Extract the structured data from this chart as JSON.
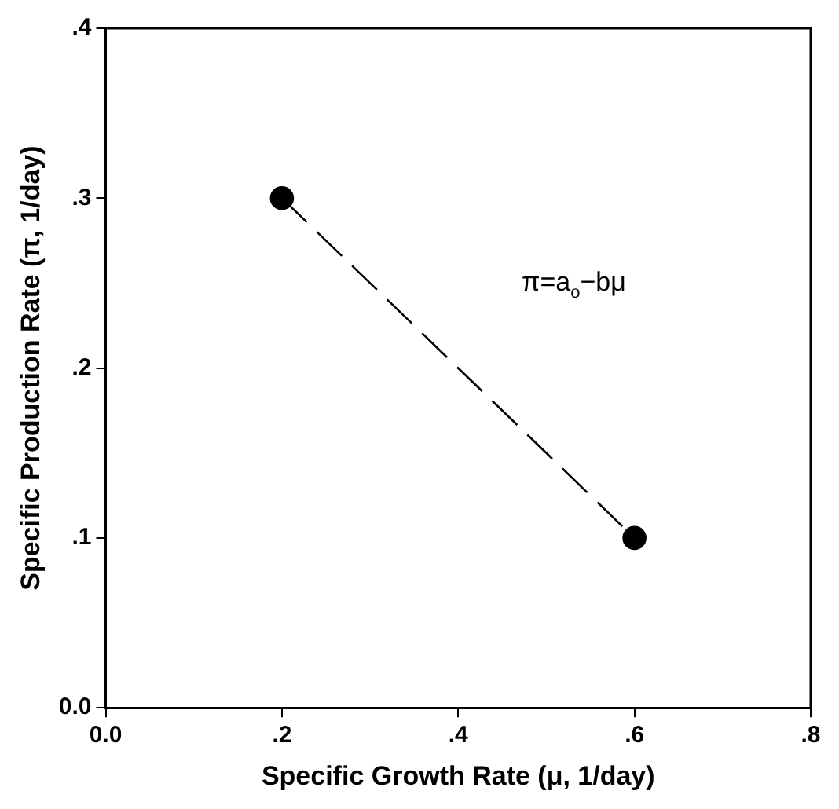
{
  "chart_data": {
    "type": "line",
    "xlabel": "Specific Growth Rate (μ, 1/day)",
    "ylabel": "Specific Production Rate (π, 1/day)",
    "x": [
      0.2,
      0.6
    ],
    "series": [
      {
        "color": "#000000",
        "values": [
          0.3,
          0.1
        ]
      }
    ],
    "marker": "circle",
    "line_style": "dashed",
    "grid": false,
    "legend": false,
    "xlim": [
      0,
      0.8
    ],
    "ylim": [
      0,
      0.4
    ],
    "xticks": [
      {
        "value": 0,
        "label": "0.0"
      },
      {
        "value": 0.2,
        "label": ".2"
      },
      {
        "value": 0.4,
        "label": ".4"
      },
      {
        "value": 0.6,
        "label": ".6"
      },
      {
        "value": 0.8,
        "label": ".8"
      }
    ],
    "yticks": [
      {
        "value": 0,
        "label": "0.0"
      },
      {
        "value": 0.1,
        "label": ".1"
      },
      {
        "value": 0.2,
        "label": ".2"
      },
      {
        "value": 0.3,
        "label": ".3"
      },
      {
        "value": 0.4,
        "label": ".4"
      }
    ],
    "annotations": [
      "π=a$_{o}$−bμ"
    ]
  }
}
